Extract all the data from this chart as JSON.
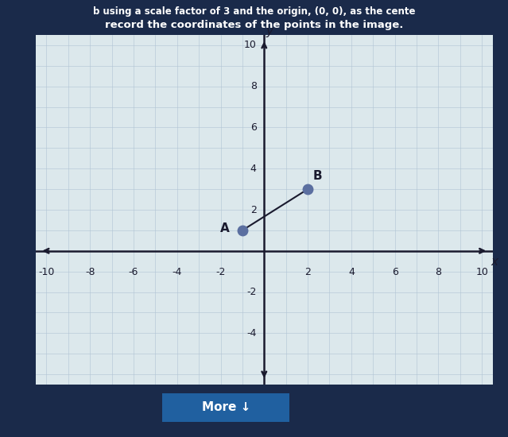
{
  "title_line1": "b using a scale factor of 3 and the origin, (0, 0), as the cente",
  "title_line2": "record the coordinates of the points in the image.",
  "xlim": [
    -10.5,
    10.5
  ],
  "ylim": [
    -6.5,
    10.5
  ],
  "xtick_vals": [
    -10,
    -8,
    -6,
    -4,
    -2,
    2,
    4,
    6,
    8,
    10
  ],
  "ytick_vals": [
    -4,
    -2,
    2,
    4,
    6,
    8,
    10
  ],
  "point_A": [
    -1,
    1
  ],
  "point_B": [
    2,
    3
  ],
  "point_color": "#5b6fa0",
  "line_color": "#1a1a2e",
  "grid_major_color": "#b0c4d4",
  "grid_minor_color": "#d0e0e8",
  "axis_color": "#1a1a2e",
  "bg_color": "#dce8ec",
  "outer_bg": "#1a2a4a",
  "label_A": "A",
  "label_B": "B",
  "button_text": "More ↓",
  "button_color": "#2060a0",
  "button_text_color": "#ffffff",
  "tick_fontsize": 9,
  "label_fontsize": 11,
  "point_markersize": 9
}
